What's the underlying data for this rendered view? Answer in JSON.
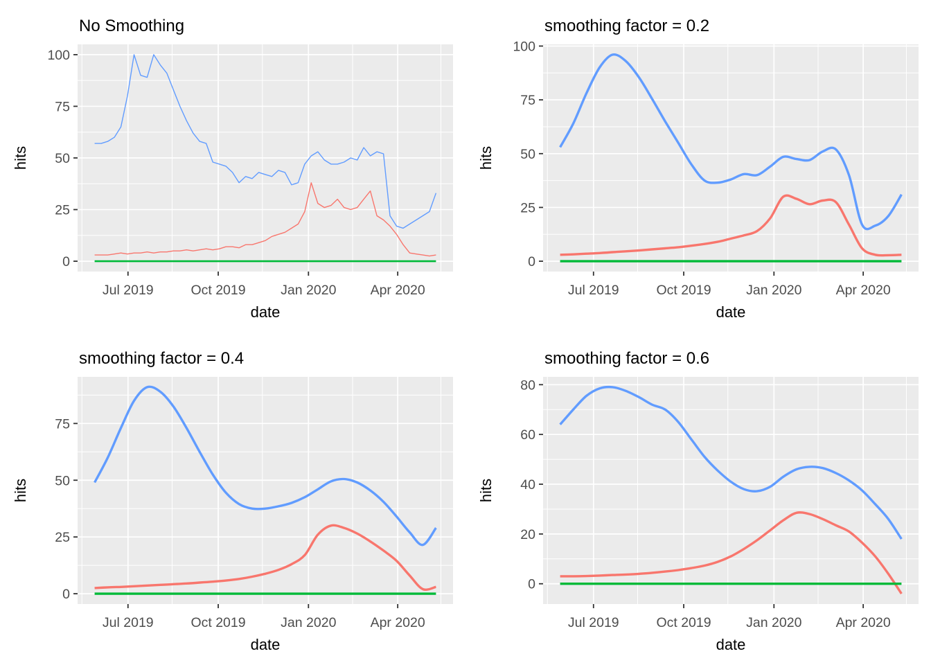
{
  "page": {
    "background": "#FFFFFF"
  },
  "palette": {
    "blue": "#619CFF",
    "red": "#F8766D",
    "green": "#00BA38",
    "panel_bg": "#EBEBEB",
    "grid_major": "#FFFFFF",
    "grid_minor": "#FFFFFF",
    "tick_label": "#4D4D4D",
    "tick_mark": "#333333",
    "title_color": "#000000",
    "axis_title_color": "#000000"
  },
  "chart_data": [
    {
      "type": "line",
      "title": "No Smoothing",
      "xlabel": "date",
      "ylabel": "hits",
      "smooth": false,
      "legend": "none",
      "grid": "major+minor",
      "x_tick_labels": [
        "Jul 2019",
        "Oct 2019",
        "Jan 2020",
        "Apr 2020"
      ],
      "x_tick_days": [
        53,
        145,
        237,
        328
      ],
      "x_minor_days": [
        6,
        98,
        190,
        282,
        372
      ],
      "x_data_day_range": [
        19,
        367
      ],
      "y_ticks": [
        0,
        25,
        50,
        75,
        100
      ],
      "series": [
        {
          "name": "red",
          "color": "#F8766D",
          "width": 1.4,
          "values": [
            3,
            3,
            3,
            3.5,
            4,
            3.5,
            4,
            4,
            4.5,
            4,
            4.5,
            4.5,
            5,
            5,
            5.5,
            5,
            5.5,
            6,
            5.5,
            6,
            7,
            7,
            6.5,
            8,
            8,
            9,
            10,
            12,
            13,
            14,
            16,
            18,
            24,
            38,
            28,
            26,
            27,
            30,
            26,
            25,
            26,
            30,
            34,
            22,
            20,
            17,
            13,
            8,
            4,
            3.5,
            3,
            2.5,
            3
          ]
        },
        {
          "name": "blue",
          "color": "#619CFF",
          "width": 1.4,
          "values": [
            57,
            57,
            58,
            60,
            65,
            80,
            100,
            90,
            89,
            100,
            95,
            91,
            83,
            75,
            68,
            62,
            58,
            57,
            48,
            47,
            46,
            43,
            38,
            41,
            40,
            43,
            42,
            41,
            44,
            43,
            37,
            38,
            47,
            51,
            53,
            49,
            47,
            47,
            48,
            50,
            49,
            55,
            51,
            53,
            52,
            22,
            17,
            16,
            18,
            20,
            22,
            24,
            33
          ]
        },
        {
          "name": "green",
          "color": "#00BA38",
          "width": 2.6,
          "values": [
            0,
            0
          ]
        }
      ]
    },
    {
      "type": "line",
      "title": "smoothing factor = 0.2",
      "xlabel": "date",
      "ylabel": "hits",
      "smooth": true,
      "legend": "none",
      "grid": "major+minor",
      "x_tick_labels": [
        "Jul 2019",
        "Oct 2019",
        "Jan 2020",
        "Apr 2020"
      ],
      "x_tick_days": [
        53,
        145,
        237,
        328
      ],
      "x_minor_days": [
        6,
        98,
        190,
        282,
        372
      ],
      "x_data_day_range": [
        19,
        367
      ],
      "y_ticks": [
        0,
        25,
        50,
        75,
        100
      ],
      "series": [
        {
          "name": "red",
          "color": "#F8766D",
          "width": 3.4,
          "values": [
            3,
            3.2,
            3.5,
            3.8,
            4.2,
            4.6,
            5,
            5.5,
            6,
            6.5,
            7.2,
            8,
            9,
            10.5,
            12,
            14,
            20,
            30,
            29,
            26.5,
            28.2,
            27.5,
            17,
            6,
            3,
            2.8,
            3
          ]
        },
        {
          "name": "blue",
          "color": "#619CFF",
          "width": 3.4,
          "values": [
            53,
            64,
            78,
            90,
            96,
            93,
            85.5,
            75.5,
            65,
            55,
            45,
            37.5,
            36.5,
            38,
            40.5,
            40,
            44,
            48.5,
            47.5,
            47,
            51,
            52,
            40,
            17,
            16.5,
            21,
            31
          ]
        },
        {
          "name": "green",
          "color": "#00BA38",
          "width": 3.4,
          "values": [
            0,
            0
          ]
        }
      ]
    },
    {
      "type": "line",
      "title": "smoothing factor = 0.4",
      "xlabel": "date",
      "ylabel": "hits",
      "smooth": true,
      "legend": "none",
      "grid": "major+minor",
      "x_tick_labels": [
        "Jul 2019",
        "Oct 2019",
        "Jan 2020",
        "Apr 2020"
      ],
      "x_tick_days": [
        53,
        145,
        237,
        328
      ],
      "x_minor_days": [
        6,
        98,
        190,
        282,
        372
      ],
      "x_data_day_range": [
        19,
        367
      ],
      "y_ticks": [
        0,
        25,
        50,
        75
      ],
      "series": [
        {
          "name": "red",
          "color": "#F8766D",
          "width": 3.4,
          "values": [
            2.5,
            2.8,
            3,
            3.3,
            3.6,
            3.9,
            4.2,
            4.5,
            4.9,
            5.3,
            5.8,
            6.5,
            7.5,
            8.8,
            10.5,
            13,
            17,
            26,
            30,
            29,
            26.5,
            23,
            19,
            14.5,
            8,
            2,
            3
          ]
        },
        {
          "name": "blue",
          "color": "#619CFF",
          "width": 3.4,
          "values": [
            49,
            60,
            73,
            85,
            91,
            89,
            82.5,
            73,
            62.5,
            52.5,
            44.5,
            39.5,
            37.5,
            37.5,
            38.5,
            40,
            42.5,
            46,
            49.5,
            50.5,
            49,
            45.5,
            40.5,
            34,
            27,
            21.5,
            29
          ]
        },
        {
          "name": "green",
          "color": "#00BA38",
          "width": 3.4,
          "values": [
            0,
            0
          ]
        }
      ]
    },
    {
      "type": "line",
      "title": "smoothing factor = 0.6",
      "xlabel": "date",
      "ylabel": "hits",
      "smooth": true,
      "legend": "none",
      "grid": "major+minor",
      "x_tick_labels": [
        "Jul 2019",
        "Oct 2019",
        "Jan 2020",
        "Apr 2020"
      ],
      "x_tick_days": [
        53,
        145,
        237,
        328
      ],
      "x_minor_days": [
        6,
        98,
        190,
        282,
        372
      ],
      "x_data_day_range": [
        19,
        367
      ],
      "y_ticks": [
        0,
        20,
        40,
        60,
        80
      ],
      "series": [
        {
          "name": "red",
          "color": "#F8766D",
          "width": 3.4,
          "values": [
            3,
            3,
            3.1,
            3.3,
            3.5,
            3.7,
            4,
            4.4,
            4.9,
            5.5,
            6.3,
            7.3,
            8.8,
            11,
            14,
            17.5,
            21.5,
            25.5,
            28.5,
            28,
            26,
            23.5,
            21,
            16.5,
            11,
            4,
            -4
          ]
        },
        {
          "name": "blue",
          "color": "#619CFF",
          "width": 3.4,
          "values": [
            64,
            70,
            75.5,
            78.5,
            79,
            77.5,
            75,
            72,
            70,
            65,
            58,
            51,
            45.5,
            41,
            38,
            37.2,
            39,
            43,
            46,
            47,
            46.5,
            44.5,
            41.5,
            37.5,
            32,
            26,
            18
          ]
        },
        {
          "name": "green",
          "color": "#00BA38",
          "width": 3.4,
          "values": [
            0,
            0
          ]
        }
      ]
    }
  ]
}
